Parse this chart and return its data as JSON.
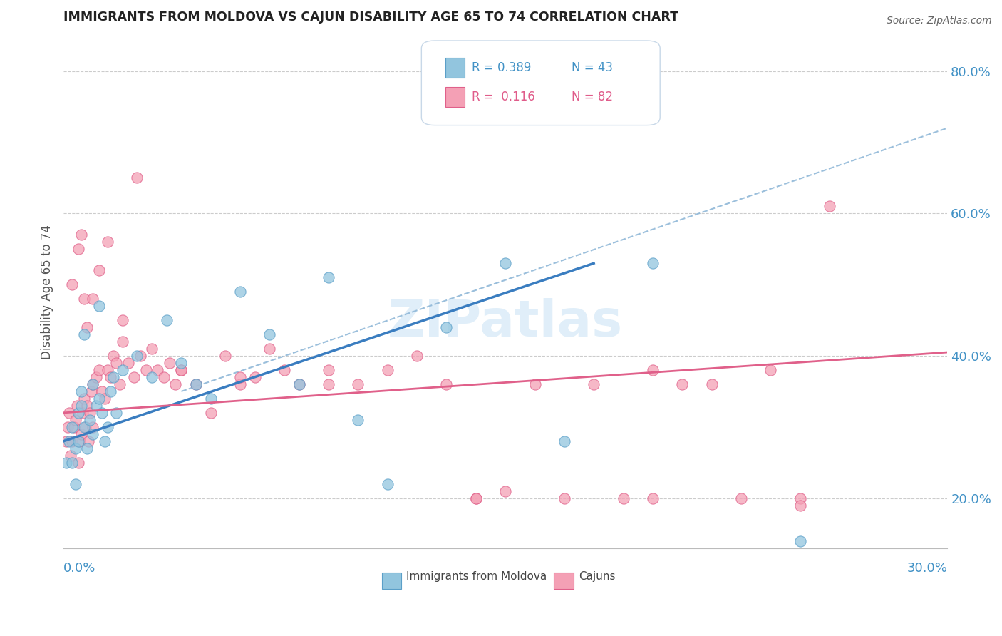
{
  "title": "IMMIGRANTS FROM MOLDOVA VS CAJUN DISABILITY AGE 65 TO 74 CORRELATION CHART",
  "source": "Source: ZipAtlas.com",
  "ylabel": "Disability Age 65 to 74",
  "xlim": [
    0.0,
    30.0
  ],
  "ylim": [
    13.0,
    85.0
  ],
  "yticks": [
    20.0,
    40.0,
    60.0,
    80.0
  ],
  "ytick_labels": [
    "20.0%",
    "40.0%",
    "60.0%",
    "80.0%"
  ],
  "color_blue": "#92c5de",
  "color_blue_edge": "#5b9fc8",
  "color_blue_line": "#3a7dc0",
  "color_pink": "#f4a0b5",
  "color_pink_edge": "#e0608a",
  "color_pink_line": "#e0608a",
  "color_dashed": "#90b8d8",
  "blue_scatter_x": [
    0.1,
    0.2,
    0.3,
    0.4,
    0.5,
    0.5,
    0.6,
    0.6,
    0.7,
    0.8,
    0.9,
    1.0,
    1.0,
    1.1,
    1.2,
    1.3,
    1.4,
    1.5,
    1.6,
    1.7,
    1.8,
    2.0,
    2.5,
    3.0,
    3.5,
    4.0,
    5.0,
    6.0,
    7.0,
    8.0,
    9.0,
    10.0,
    11.0,
    13.0,
    15.0,
    17.0,
    20.0,
    25.0,
    0.3,
    0.4,
    0.7,
    1.2,
    4.5
  ],
  "blue_scatter_y": [
    25.0,
    28.0,
    30.0,
    27.0,
    32.0,
    28.0,
    33.0,
    35.0,
    30.0,
    27.0,
    31.0,
    29.0,
    36.0,
    33.0,
    34.0,
    32.0,
    28.0,
    30.0,
    35.0,
    37.0,
    32.0,
    38.0,
    40.0,
    37.0,
    45.0,
    39.0,
    34.0,
    49.0,
    43.0,
    36.0,
    51.0,
    31.0,
    22.0,
    44.0,
    53.0,
    28.0,
    53.0,
    14.0,
    25.0,
    22.0,
    43.0,
    47.0,
    36.0
  ],
  "pink_scatter_x": [
    0.1,
    0.15,
    0.2,
    0.25,
    0.3,
    0.35,
    0.4,
    0.45,
    0.5,
    0.55,
    0.6,
    0.65,
    0.7,
    0.75,
    0.8,
    0.85,
    0.9,
    0.95,
    1.0,
    1.0,
    1.1,
    1.2,
    1.3,
    1.4,
    1.5,
    1.6,
    1.7,
    1.8,
    1.9,
    2.0,
    2.2,
    2.4,
    2.6,
    2.8,
    3.0,
    3.2,
    3.4,
    3.6,
    3.8,
    4.0,
    4.5,
    5.0,
    5.5,
    6.0,
    6.5,
    7.0,
    7.5,
    8.0,
    9.0,
    10.0,
    11.0,
    12.0,
    13.0,
    14.0,
    15.0,
    16.0,
    17.0,
    18.0,
    19.0,
    20.0,
    21.0,
    22.0,
    23.0,
    24.0,
    25.0,
    26.0,
    0.3,
    0.5,
    0.6,
    0.7,
    0.8,
    1.0,
    1.2,
    1.5,
    2.0,
    2.5,
    4.0,
    6.0,
    9.0,
    14.0,
    20.0,
    25.0
  ],
  "pink_scatter_y": [
    28.0,
    30.0,
    32.0,
    26.0,
    28.0,
    30.0,
    31.0,
    33.0,
    25.0,
    28.0,
    29.0,
    32.0,
    34.0,
    30.0,
    33.0,
    28.0,
    32.0,
    35.0,
    36.0,
    30.0,
    37.0,
    38.0,
    35.0,
    34.0,
    38.0,
    37.0,
    40.0,
    39.0,
    36.0,
    42.0,
    39.0,
    37.0,
    40.0,
    38.0,
    41.0,
    38.0,
    37.0,
    39.0,
    36.0,
    38.0,
    36.0,
    32.0,
    40.0,
    36.0,
    37.0,
    41.0,
    38.0,
    36.0,
    38.0,
    36.0,
    38.0,
    40.0,
    36.0,
    20.0,
    21.0,
    36.0,
    20.0,
    36.0,
    20.0,
    38.0,
    36.0,
    36.0,
    20.0,
    38.0,
    20.0,
    61.0,
    50.0,
    55.0,
    57.0,
    48.0,
    44.0,
    48.0,
    52.0,
    56.0,
    45.0,
    65.0,
    38.0,
    37.0,
    36.0,
    20.0,
    20.0,
    19.0
  ],
  "blue_line_x0": 0.0,
  "blue_line_y0": 28.0,
  "blue_line_x1": 18.0,
  "blue_line_y1": 53.0,
  "pink_line_x0": 0.0,
  "pink_line_y0": 32.0,
  "pink_line_x1": 30.0,
  "pink_line_y1": 40.5,
  "dash_line_x0": 4.0,
  "dash_line_y0": 35.0,
  "dash_line_x1": 30.0,
  "dash_line_y1": 72.0,
  "watermark_text": "ZIPatlas",
  "legend_r1": "R = 0.389",
  "legend_n1": "N = 43",
  "legend_r2": "R =  0.116",
  "legend_n2": "N = 82"
}
